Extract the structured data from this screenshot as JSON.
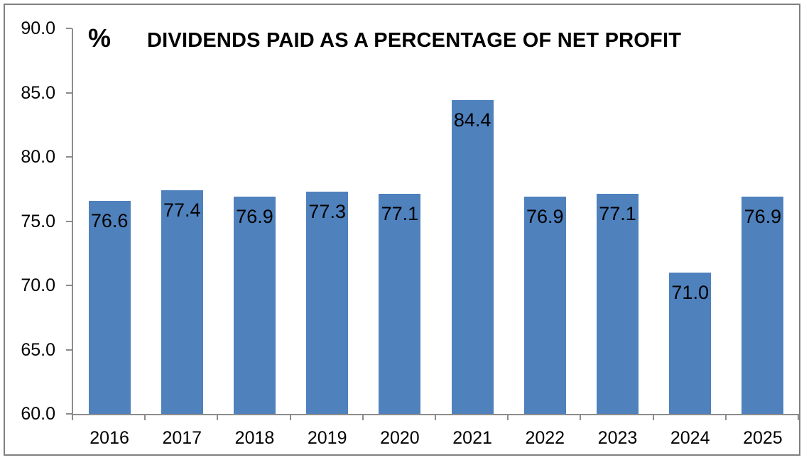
{
  "chart_data": {
    "type": "bar",
    "title": "DIVIDENDS PAID AS A PERCENTAGE OF NET PROFIT",
    "unit_label": "%",
    "categories": [
      "2016",
      "2017",
      "2018",
      "2019",
      "2020",
      "2021",
      "2022",
      "2023",
      "2024",
      "2025"
    ],
    "values": [
      76.6,
      77.4,
      76.9,
      77.3,
      77.1,
      84.4,
      76.9,
      77.1,
      71.0,
      76.9
    ],
    "value_labels": [
      "76.6",
      "77.4",
      "76.9",
      "77.3",
      "77.1",
      "84.4",
      "76.9",
      "77.1",
      "71.0",
      "76.9"
    ],
    "xlabel": "",
    "ylabel": "%",
    "ylim": [
      60,
      90
    ],
    "y_tick_step": 5,
    "y_tick_labels": [
      "90.0",
      "85.0",
      "80.0",
      "75.0",
      "70.0",
      "65.0",
      "60.0"
    ],
    "grid": false,
    "legend": null,
    "data_label_position": "inside-end",
    "colors": {
      "bar_fill": "#4F81BD",
      "axis_line": "#8C8C8C",
      "text": "#000000",
      "border": "#808080",
      "background": "#FFFFFF"
    }
  }
}
